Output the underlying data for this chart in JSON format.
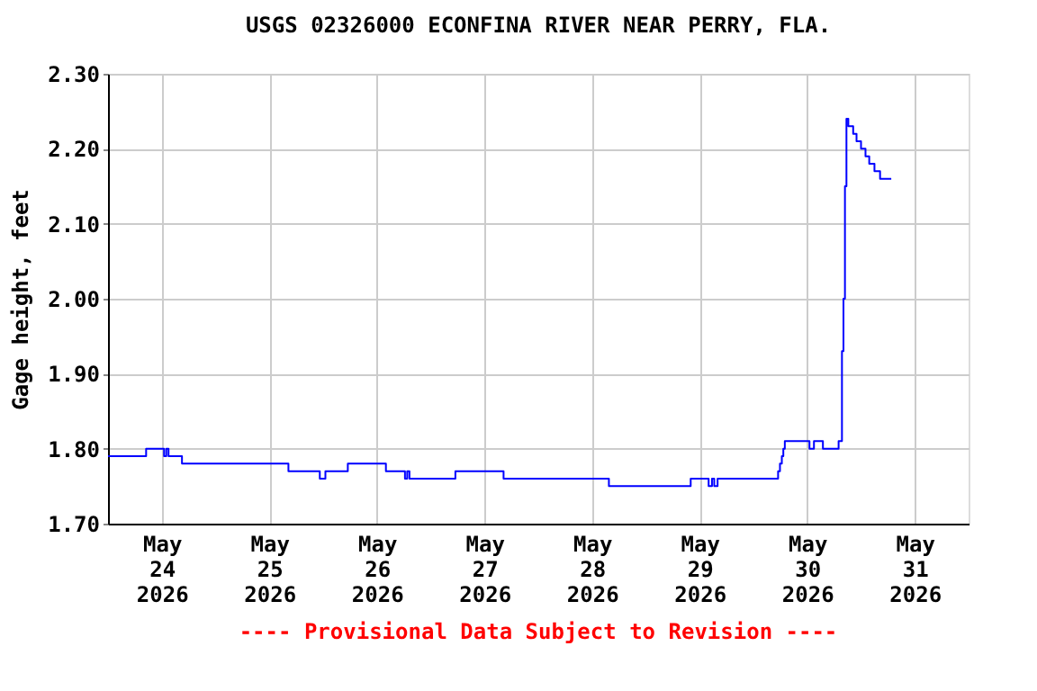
{
  "chart_data": {
    "type": "step",
    "title": "USGS 02326000 ECONFINA RIVER NEAR PERRY, FLA.",
    "ylabel": "Gage height, feet",
    "annotations": [
      "---- Provisional Data Subject to Revision ----"
    ],
    "x": [
      "2026-05-23T12:00",
      "2026-05-23T20:30",
      "2026-05-24T00:30",
      "2026-05-24T01:00",
      "2026-05-24T01:30",
      "2026-05-24T04:30",
      "2026-05-25T04:15",
      "2026-05-25T11:15",
      "2026-05-25T12:30",
      "2026-05-25T17:30",
      "2026-05-26T02:00",
      "2026-05-26T06:15",
      "2026-05-26T06:45",
      "2026-05-26T07:15",
      "2026-05-26T17:30",
      "2026-05-27T04:15",
      "2026-05-28T03:45",
      "2026-05-28T22:00",
      "2026-05-29T02:00",
      "2026-05-29T02:45",
      "2026-05-29T03:15",
      "2026-05-29T04:00",
      "2026-05-29T17:30",
      "2026-05-29T17:55",
      "2026-05-29T18:20",
      "2026-05-29T18:40",
      "2026-05-29T19:00",
      "2026-05-29T20:30",
      "2026-05-30T00:30",
      "2026-05-30T01:30",
      "2026-05-30T03:30",
      "2026-05-30T04:15",
      "2026-05-30T07:00",
      "2026-05-30T07:45",
      "2026-05-30T08:05",
      "2026-05-30T08:25",
      "2026-05-30T08:45",
      "2026-05-30T09:10",
      "2026-05-30T10:15",
      "2026-05-30T11:00",
      "2026-05-30T12:00",
      "2026-05-30T13:00",
      "2026-05-30T13:50",
      "2026-05-30T15:00",
      "2026-05-30T16:15",
      "2026-05-30T18:45"
    ],
    "series": [
      {
        "color": "#0000ff",
        "values": [
          1.79,
          1.8,
          1.79,
          1.8,
          1.79,
          1.78,
          1.77,
          1.76,
          1.77,
          1.78,
          1.77,
          1.76,
          1.77,
          1.76,
          1.77,
          1.76,
          1.75,
          1.76,
          1.75,
          1.76,
          1.75,
          1.76,
          1.77,
          1.78,
          1.79,
          1.8,
          1.81,
          1.81,
          1.8,
          1.81,
          1.8,
          1.8,
          1.81,
          1.93,
          2.0,
          2.15,
          2.24,
          2.23,
          2.22,
          2.21,
          2.2,
          2.19,
          2.18,
          2.17,
          2.16,
          2.16
        ]
      }
    ],
    "xlim": [
      "2026-05-23T12:00",
      "2026-05-31T12:00"
    ],
    "xticks": [
      {
        "value": "2026-05-24",
        "label": "May\n24\n2026"
      },
      {
        "value": "2026-05-25",
        "label": "May\n25\n2026"
      },
      {
        "value": "2026-05-26",
        "label": "May\n26\n2026"
      },
      {
        "value": "2026-05-27",
        "label": "May\n27\n2026"
      },
      {
        "value": "2026-05-28",
        "label": "May\n28\n2026"
      },
      {
        "value": "2026-05-29",
        "label": "May\n29\n2026"
      },
      {
        "value": "2026-05-30",
        "label": "May\n30\n2026"
      },
      {
        "value": "2026-05-31",
        "label": "May\n31\n2026"
      }
    ],
    "ylim": [
      1.7,
      2.3
    ],
    "yticks": [
      {
        "value": 1.7,
        "label": "1.70"
      },
      {
        "value": 1.8,
        "label": "1.80"
      },
      {
        "value": 1.9,
        "label": "1.90"
      },
      {
        "value": 2.0,
        "label": "2.00"
      },
      {
        "value": 2.1,
        "label": "2.10"
      },
      {
        "value": 2.2,
        "label": "2.20"
      },
      {
        "value": 2.3,
        "label": "2.30"
      }
    ],
    "grid": true
  }
}
